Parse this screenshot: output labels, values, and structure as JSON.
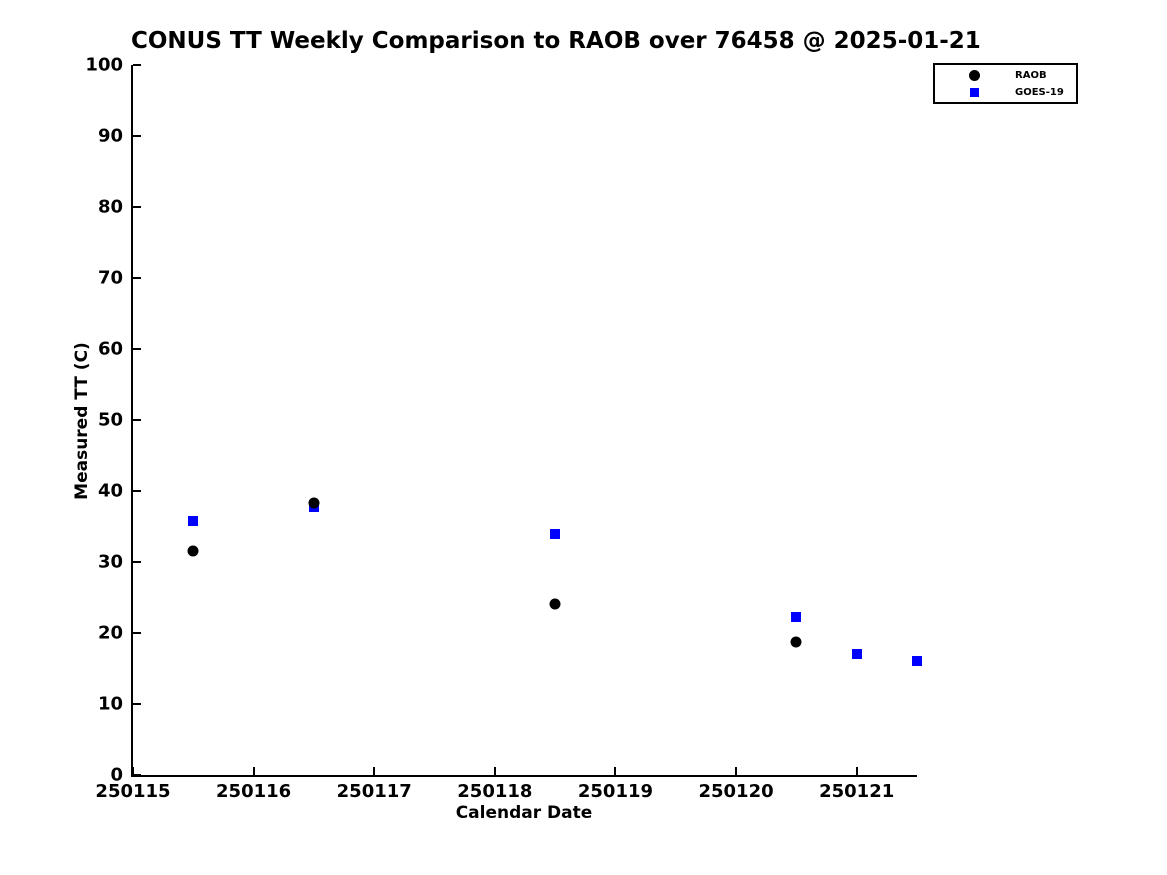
{
  "chart_data": {
    "type": "scatter",
    "title": "CONUS TT Weekly Comparison to RAOB over 76458 @ 2025-01-21",
    "xlabel": "Calendar Date",
    "ylabel": "Measured TT (C)",
    "xlim": [
      250115,
      250121.5
    ],
    "ylim": [
      0,
      100
    ],
    "x_ticks": [
      250115,
      250116,
      250117,
      250118,
      250119,
      250120,
      250121
    ],
    "y_ticks": [
      0,
      10,
      20,
      30,
      40,
      50,
      60,
      70,
      80,
      90,
      100
    ],
    "grid": false,
    "tick_direction": "in",
    "legend_position": "top-right-outside",
    "series": [
      {
        "name": "RAOB",
        "marker": "circle",
        "color": "#000000",
        "points": [
          {
            "x": 250115.5,
            "y": 31.5
          },
          {
            "x": 250116.5,
            "y": 38.3
          },
          {
            "x": 250118.5,
            "y": 24.1
          },
          {
            "x": 250120.5,
            "y": 18.8
          }
        ]
      },
      {
        "name": "GOES-19",
        "marker": "square",
        "color": "#0000ff",
        "points": [
          {
            "x": 250115.5,
            "y": 35.8
          },
          {
            "x": 250116.5,
            "y": 37.7
          },
          {
            "x": 250118.5,
            "y": 34.0
          },
          {
            "x": 250120.5,
            "y": 22.2
          },
          {
            "x": 250121.0,
            "y": 17.0
          },
          {
            "x": 250121.5,
            "y": 16.0
          }
        ]
      }
    ]
  }
}
